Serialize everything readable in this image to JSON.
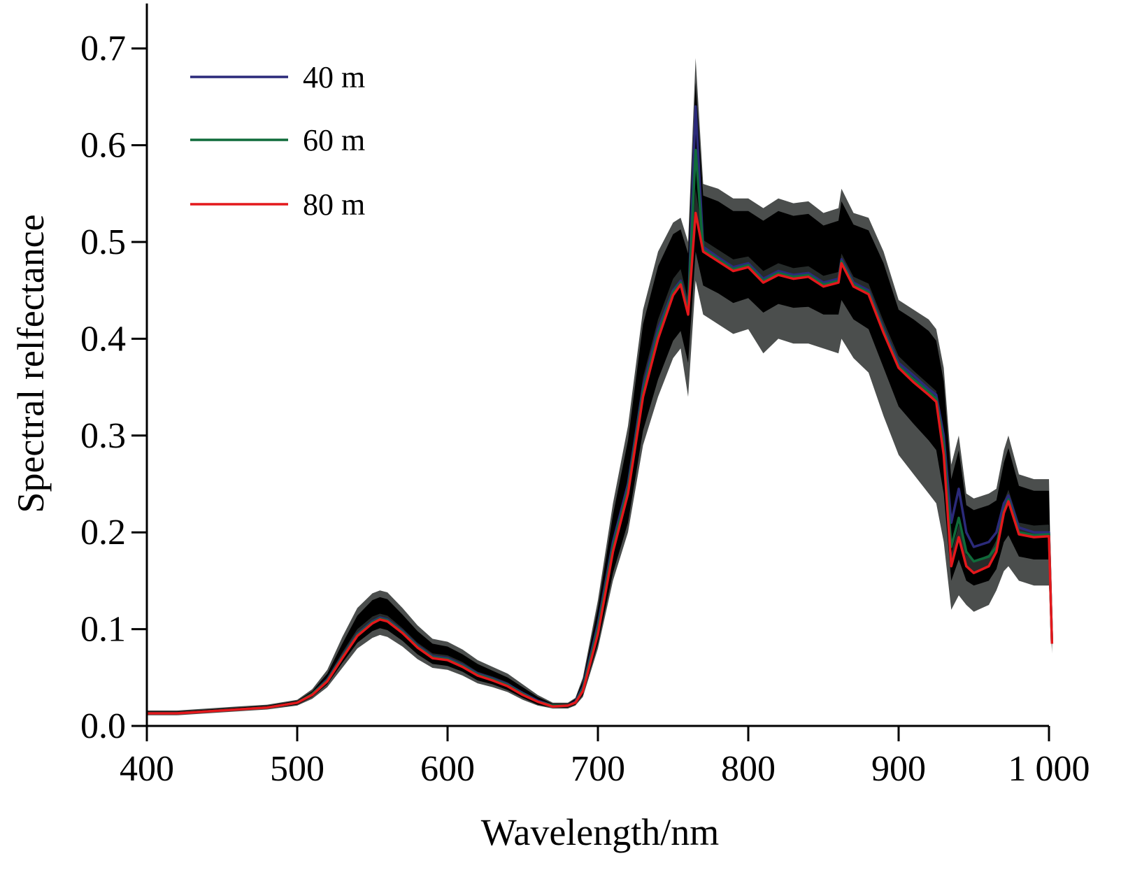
{
  "chart_data": {
    "type": "line",
    "title": "",
    "xlabel": "Wavelength/nm",
    "ylabel": "Spectral relfectance",
    "xlim": [
      400,
      1000
    ],
    "ylim": [
      0.0,
      0.75
    ],
    "x_ticks": [
      400,
      500,
      600,
      700,
      800,
      900,
      1000
    ],
    "x_tick_labels": [
      "400",
      "500",
      "600",
      "700",
      "800",
      "900",
      "1 000"
    ],
    "y_ticks": [
      0.0,
      0.1,
      0.2,
      0.3,
      0.4,
      0.5,
      0.6,
      0.7
    ],
    "y_tick_labels": [
      "0.0",
      "0.1",
      "0.2",
      "0.3",
      "0.4",
      "0.5",
      "0.6",
      "0.7"
    ],
    "grid": false,
    "legend_position": "top-left",
    "band_colors": {
      "outer": "#4b4e4d",
      "middle": "#000000",
      "inner": "#262b2a"
    },
    "x": [
      400,
      420,
      440,
      460,
      480,
      500,
      510,
      520,
      530,
      540,
      550,
      555,
      560,
      570,
      580,
      590,
      600,
      610,
      620,
      630,
      640,
      650,
      660,
      670,
      680,
      685,
      690,
      700,
      710,
      720,
      730,
      740,
      750,
      755,
      760,
      765,
      770,
      780,
      790,
      800,
      810,
      820,
      830,
      840,
      850,
      860,
      862,
      870,
      880,
      890,
      900,
      910,
      920,
      925,
      930,
      935,
      940,
      945,
      950,
      960,
      965,
      970,
      973,
      980,
      990,
      1000,
      1002
    ],
    "series": [
      {
        "name": "40 m",
        "color": "#2b2a7a",
        "values": [
          0.013,
          0.013,
          0.015,
          0.017,
          0.019,
          0.024,
          0.033,
          0.048,
          0.072,
          0.095,
          0.108,
          0.112,
          0.11,
          0.098,
          0.083,
          0.072,
          0.07,
          0.063,
          0.054,
          0.049,
          0.043,
          0.034,
          0.026,
          0.021,
          0.021,
          0.025,
          0.04,
          0.105,
          0.19,
          0.25,
          0.35,
          0.41,
          0.45,
          0.46,
          0.43,
          0.64,
          0.495,
          0.484,
          0.474,
          0.478,
          0.462,
          0.47,
          0.466,
          0.468,
          0.458,
          0.462,
          0.482,
          0.458,
          0.45,
          0.41,
          0.375,
          0.362,
          0.348,
          0.342,
          0.3,
          0.21,
          0.245,
          0.2,
          0.185,
          0.19,
          0.2,
          0.23,
          0.238,
          0.205,
          0.2,
          0.2,
          0.085
        ]
      },
      {
        "name": "60 m",
        "color": "#0f6b3a",
        "values": [
          0.013,
          0.013,
          0.015,
          0.017,
          0.019,
          0.024,
          0.033,
          0.047,
          0.071,
          0.094,
          0.107,
          0.111,
          0.109,
          0.097,
          0.082,
          0.071,
          0.069,
          0.062,
          0.053,
          0.048,
          0.042,
          0.033,
          0.025,
          0.021,
          0.021,
          0.024,
          0.038,
          0.1,
          0.185,
          0.245,
          0.345,
          0.405,
          0.448,
          0.458,
          0.428,
          0.595,
          0.492,
          0.482,
          0.472,
          0.476,
          0.46,
          0.468,
          0.464,
          0.466,
          0.456,
          0.46,
          0.48,
          0.456,
          0.448,
          0.408,
          0.372,
          0.358,
          0.345,
          0.338,
          0.29,
          0.185,
          0.215,
          0.18,
          0.17,
          0.175,
          0.185,
          0.222,
          0.234,
          0.2,
          0.197,
          0.198,
          0.085
        ]
      },
      {
        "name": "80 m",
        "color": "#e4181c",
        "values": [
          0.013,
          0.013,
          0.015,
          0.017,
          0.019,
          0.024,
          0.032,
          0.046,
          0.07,
          0.093,
          0.106,
          0.11,
          0.108,
          0.096,
          0.081,
          0.07,
          0.068,
          0.061,
          0.052,
          0.047,
          0.041,
          0.032,
          0.025,
          0.02,
          0.021,
          0.024,
          0.036,
          0.095,
          0.18,
          0.24,
          0.34,
          0.4,
          0.445,
          0.456,
          0.425,
          0.53,
          0.49,
          0.48,
          0.47,
          0.474,
          0.458,
          0.466,
          0.462,
          0.464,
          0.454,
          0.458,
          0.478,
          0.454,
          0.446,
          0.406,
          0.37,
          0.355,
          0.342,
          0.335,
          0.28,
          0.165,
          0.195,
          0.165,
          0.158,
          0.165,
          0.18,
          0.22,
          0.232,
          0.198,
          0.195,
          0.196,
          0.085
        ]
      }
    ],
    "bands": [
      {
        "name": "outer",
        "upper": [
          0.016,
          0.016,
          0.018,
          0.02,
          0.022,
          0.027,
          0.038,
          0.058,
          0.092,
          0.122,
          0.137,
          0.14,
          0.138,
          0.122,
          0.104,
          0.09,
          0.087,
          0.079,
          0.068,
          0.061,
          0.054,
          0.043,
          0.032,
          0.024,
          0.024,
          0.029,
          0.05,
          0.13,
          0.23,
          0.31,
          0.43,
          0.49,
          0.52,
          0.525,
          0.5,
          0.69,
          0.56,
          0.555,
          0.545,
          0.545,
          0.535,
          0.545,
          0.54,
          0.542,
          0.53,
          0.535,
          0.555,
          0.53,
          0.525,
          0.49,
          0.44,
          0.43,
          0.42,
          0.41,
          0.37,
          0.27,
          0.3,
          0.24,
          0.235,
          0.24,
          0.245,
          0.285,
          0.3,
          0.26,
          0.255,
          0.255,
          0.1
        ],
        "lower": [
          0.011,
          0.011,
          0.013,
          0.015,
          0.017,
          0.021,
          0.028,
          0.04,
          0.06,
          0.08,
          0.091,
          0.094,
          0.092,
          0.082,
          0.069,
          0.06,
          0.058,
          0.052,
          0.044,
          0.04,
          0.035,
          0.027,
          0.021,
          0.018,
          0.018,
          0.021,
          0.03,
          0.08,
          0.15,
          0.2,
          0.29,
          0.34,
          0.38,
          0.39,
          0.34,
          0.46,
          0.425,
          0.415,
          0.405,
          0.41,
          0.385,
          0.4,
          0.395,
          0.395,
          0.39,
          0.385,
          0.4,
          0.38,
          0.365,
          0.32,
          0.28,
          0.26,
          0.24,
          0.23,
          0.19,
          0.12,
          0.135,
          0.125,
          0.118,
          0.125,
          0.14,
          0.16,
          0.165,
          0.15,
          0.145,
          0.145,
          0.075
        ]
      },
      {
        "name": "middle",
        "upper": [
          0.015,
          0.015,
          0.017,
          0.019,
          0.021,
          0.026,
          0.036,
          0.054,
          0.085,
          0.114,
          0.13,
          0.133,
          0.131,
          0.115,
          0.098,
          0.085,
          0.082,
          0.074,
          0.064,
          0.057,
          0.05,
          0.04,
          0.03,
          0.023,
          0.023,
          0.028,
          0.047,
          0.122,
          0.218,
          0.295,
          0.415,
          0.475,
          0.508,
          0.513,
          0.488,
          0.665,
          0.548,
          0.542,
          0.532,
          0.532,
          0.522,
          0.532,
          0.527,
          0.529,
          0.517,
          0.522,
          0.542,
          0.518,
          0.512,
          0.478,
          0.43,
          0.42,
          0.408,
          0.398,
          0.356,
          0.255,
          0.285,
          0.228,
          0.223,
          0.228,
          0.233,
          0.272,
          0.287,
          0.248,
          0.243,
          0.243,
          0.095
        ],
        "lower": [
          0.012,
          0.012,
          0.014,
          0.016,
          0.018,
          0.022,
          0.03,
          0.043,
          0.065,
          0.086,
          0.098,
          0.101,
          0.099,
          0.088,
          0.074,
          0.064,
          0.062,
          0.056,
          0.047,
          0.043,
          0.037,
          0.029,
          0.022,
          0.019,
          0.019,
          0.022,
          0.032,
          0.085,
          0.158,
          0.21,
          0.305,
          0.358,
          0.398,
          0.408,
          0.375,
          0.49,
          0.455,
          0.447,
          0.437,
          0.442,
          0.427,
          0.436,
          0.432,
          0.433,
          0.425,
          0.425,
          0.44,
          0.42,
          0.41,
          0.37,
          0.33,
          0.312,
          0.295,
          0.285,
          0.24,
          0.15,
          0.172,
          0.15,
          0.145,
          0.15,
          0.162,
          0.19,
          0.197,
          0.175,
          0.172,
          0.172,
          0.08
        ]
      },
      {
        "name": "inner",
        "upper": [
          0.014,
          0.014,
          0.016,
          0.018,
          0.02,
          0.025,
          0.034,
          0.05,
          0.076,
          0.1,
          0.113,
          0.116,
          0.114,
          0.101,
          0.086,
          0.075,
          0.073,
          0.066,
          0.056,
          0.051,
          0.045,
          0.035,
          0.027,
          0.022,
          0.022,
          0.026,
          0.041,
          0.106,
          0.192,
          0.255,
          0.36,
          0.42,
          0.462,
          0.472,
          0.44,
          0.555,
          0.502,
          0.492,
          0.482,
          0.485,
          0.47,
          0.478,
          0.473,
          0.475,
          0.465,
          0.469,
          0.488,
          0.464,
          0.457,
          0.418,
          0.382,
          0.367,
          0.353,
          0.346,
          0.292,
          0.178,
          0.208,
          0.177,
          0.17,
          0.177,
          0.192,
          0.232,
          0.244,
          0.21,
          0.207,
          0.208,
          0.088
        ],
        "lower": [
          0.013,
          0.013,
          0.015,
          0.017,
          0.019,
          0.024,
          0.032,
          0.046,
          0.07,
          0.093,
          0.106,
          0.11,
          0.108,
          0.096,
          0.081,
          0.07,
          0.068,
          0.061,
          0.052,
          0.047,
          0.041,
          0.032,
          0.025,
          0.02,
          0.021,
          0.024,
          0.036,
          0.095,
          0.18,
          0.24,
          0.34,
          0.4,
          0.445,
          0.456,
          0.425,
          0.53,
          0.49,
          0.48,
          0.47,
          0.474,
          0.458,
          0.466,
          0.462,
          0.464,
          0.454,
          0.458,
          0.478,
          0.454,
          0.446,
          0.406,
          0.37,
          0.355,
          0.342,
          0.335,
          0.28,
          0.165,
          0.195,
          0.165,
          0.158,
          0.165,
          0.18,
          0.22,
          0.232,
          0.198,
          0.195,
          0.196,
          0.085
        ]
      }
    ]
  }
}
